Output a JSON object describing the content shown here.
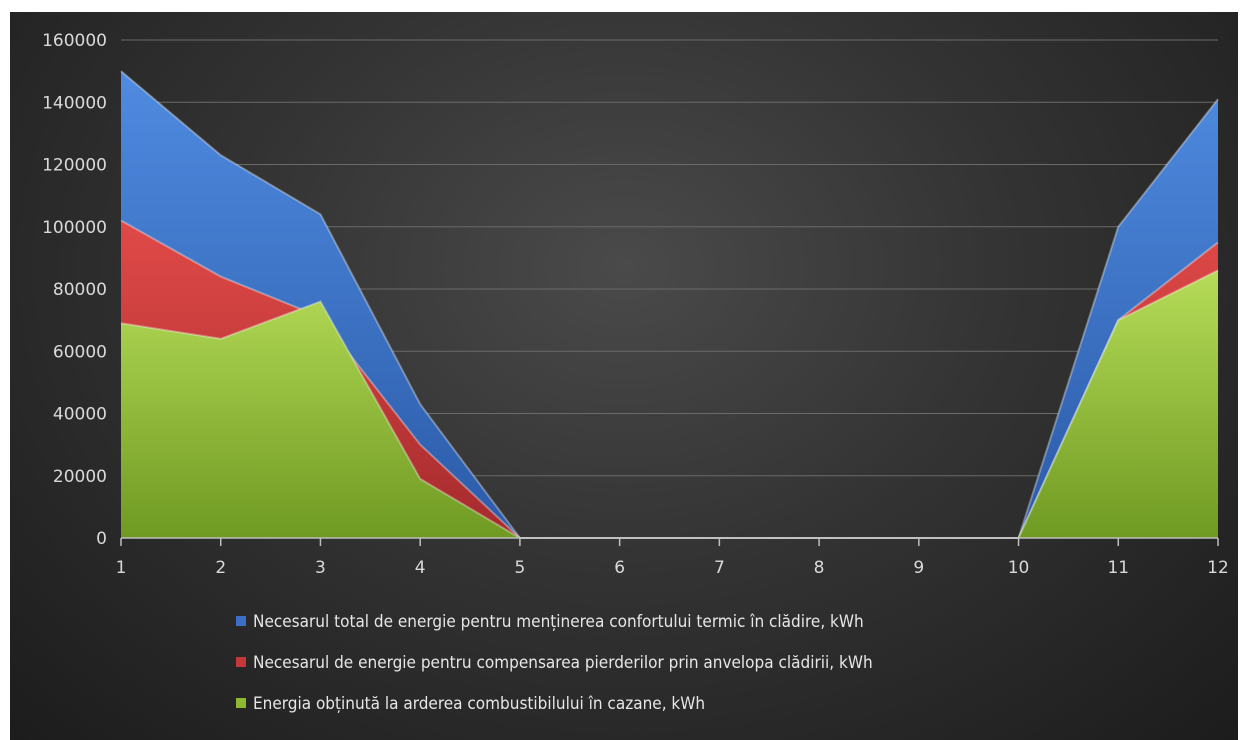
{
  "chart_data": {
    "type": "area",
    "x": [
      1,
      2,
      3,
      4,
      5,
      6,
      7,
      8,
      9,
      10,
      11,
      12
    ],
    "xlim": [
      1,
      12
    ],
    "ylim": [
      0,
      160000
    ],
    "y_ticks": [
      0,
      20000,
      40000,
      60000,
      80000,
      100000,
      120000,
      140000,
      160000
    ],
    "grid": true,
    "legend_position": "bottom",
    "series": [
      {
        "name": "Necesarul total de energie pentru menținerea confortului termic în clădire, kWh",
        "color": "#3a6fc4",
        "values": [
          150000,
          123000,
          104000,
          43000,
          0,
          0,
          0,
          0,
          0,
          0,
          100000,
          141000
        ]
      },
      {
        "name": "Necesarul de energie pentru compensarea pierderilor prin anvelopa clădirii, kWh",
        "color": "#c4383a",
        "values": [
          102000,
          84000,
          71000,
          30000,
          0,
          0,
          0,
          0,
          0,
          0,
          70000,
          95000
        ]
      },
      {
        "name": "Energia obținută la arderea combustibilului în cazane, kWh",
        "color": "#8fb832",
        "values": [
          69000,
          64000,
          76000,
          19000,
          0,
          0,
          0,
          0,
          0,
          0,
          70000,
          86000
        ]
      }
    ]
  }
}
